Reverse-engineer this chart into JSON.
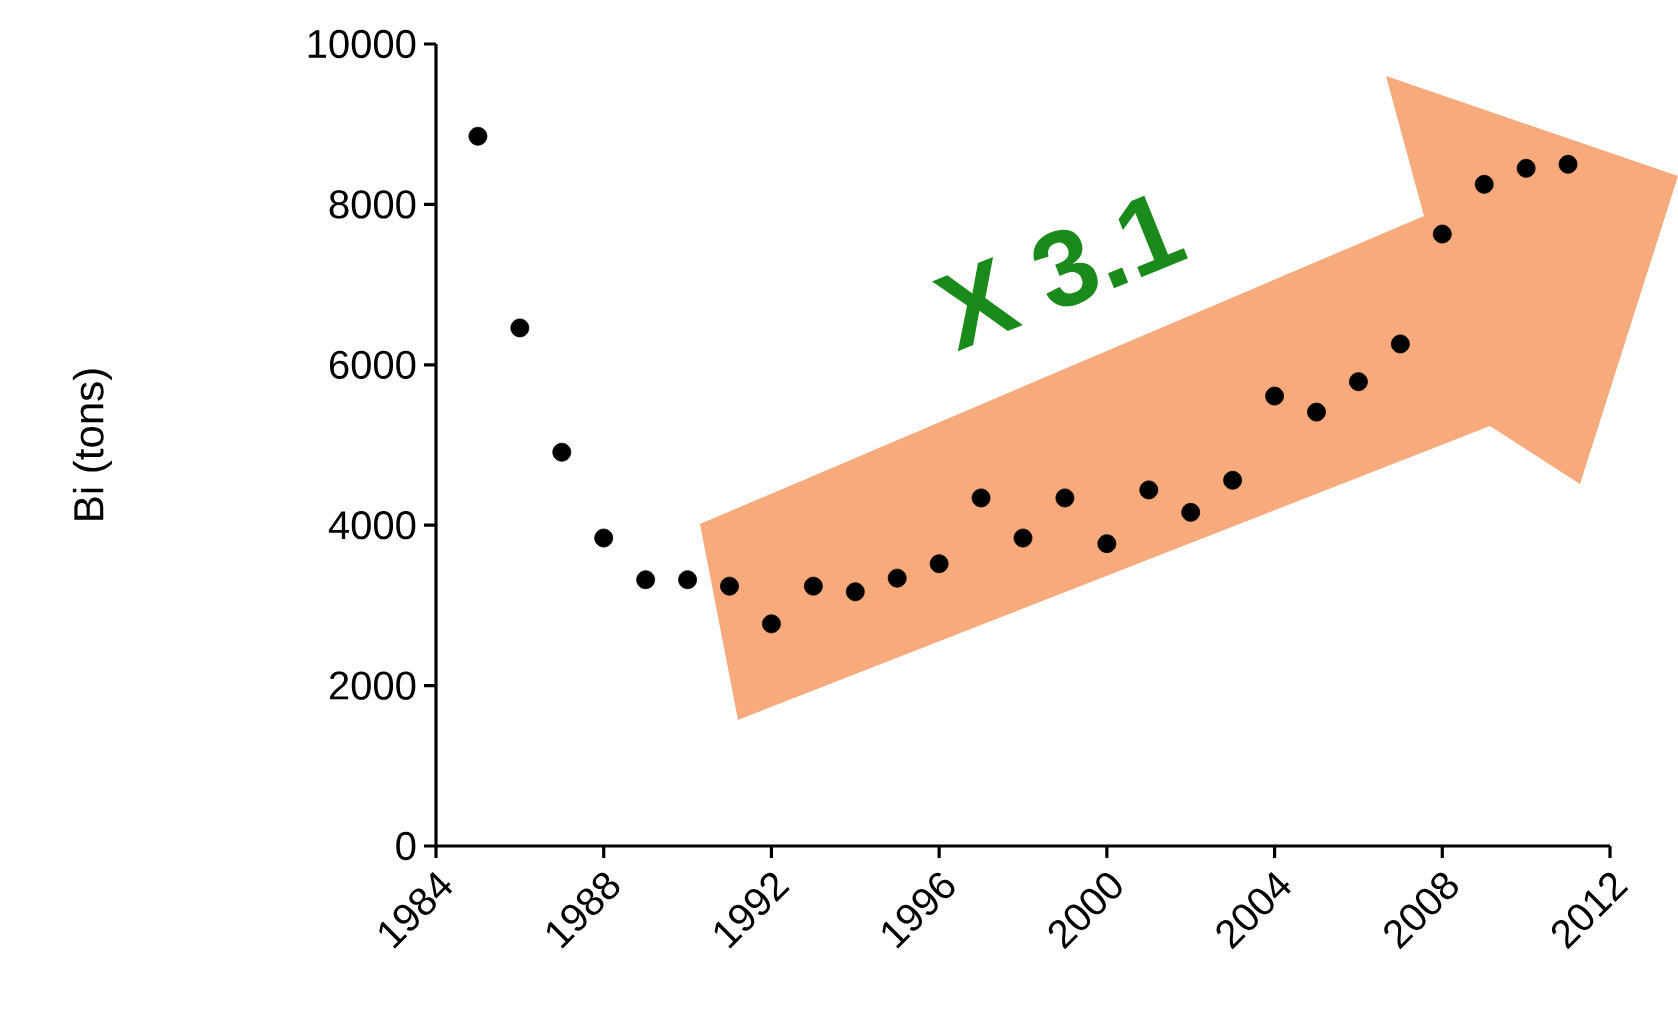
{
  "chart_data": {
    "type": "scatter",
    "ylabel": "Bi (tons)",
    "annotations": [
      "X 3.1"
    ],
    "x": [
      1985,
      1986,
      1987,
      1988,
      1989,
      1990,
      1991,
      1992,
      1993,
      1994,
      1995,
      1996,
      1997,
      1998,
      1999,
      2000,
      2001,
      2002,
      2003,
      2004,
      2005,
      2006,
      2007,
      2008,
      2009,
      2010,
      2011
    ],
    "values": [
      8850,
      6460,
      4910,
      3840,
      3320,
      3320,
      3240,
      2770,
      3240,
      3170,
      3340,
      3520,
      4340,
      3840,
      4340,
      3770,
      4440,
      4160,
      4560,
      5610,
      5410,
      5790,
      6260,
      7630,
      8250,
      8450,
      8500
    ],
    "color": "#000000",
    "xlim": [
      1984,
      2012
    ],
    "xticks": [
      1984,
      1988,
      1992,
      1996,
      2000,
      2004,
      2008,
      2012
    ],
    "ylim": [
      0,
      10000
    ],
    "yticks": [
      0,
      2000,
      4000,
      6000,
      8000,
      10000
    ]
  }
}
